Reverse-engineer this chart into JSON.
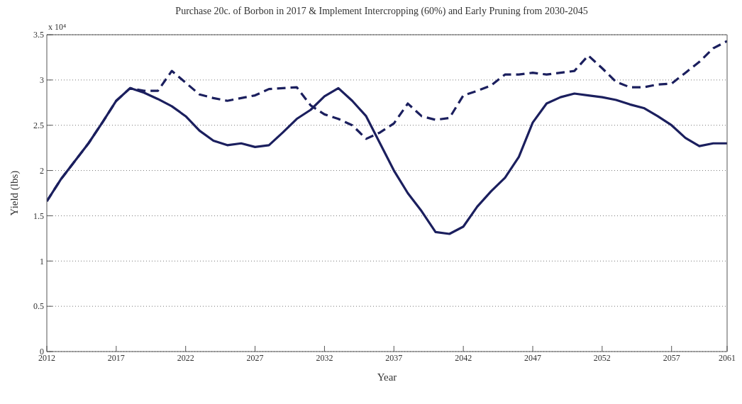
{
  "chart_data": {
    "type": "line",
    "title": "Purchase 20c. of Borbon in 2017 & Implement Intercropping (60%) and Early Pruning from 2030-2045",
    "xlabel": "Year",
    "ylabel": "Yield (lbs)",
    "annotations": [
      "x 10⁴"
    ],
    "x": [
      2012,
      2013,
      2014,
      2015,
      2016,
      2017,
      2018,
      2019,
      2020,
      2021,
      2022,
      2023,
      2024,
      2025,
      2026,
      2027,
      2028,
      2029,
      2030,
      2031,
      2032,
      2033,
      2034,
      2035,
      2036,
      2037,
      2038,
      2039,
      2040,
      2041,
      2042,
      2043,
      2044,
      2045,
      2046,
      2047,
      2048,
      2049,
      2050,
      2051,
      2052,
      2053,
      2054,
      2055,
      2056,
      2057,
      2058,
      2059,
      2060,
      2061
    ],
    "series": [
      {
        "color": "#1b1f5e",
        "line_style": "solid",
        "values": [
          1.66,
          1.9,
          2.1,
          2.3,
          2.53,
          2.77,
          2.91,
          2.86,
          2.79,
          2.71,
          2.6,
          2.44,
          2.33,
          2.28,
          2.3,
          2.26,
          2.28,
          2.42,
          2.57,
          2.67,
          2.82,
          2.91,
          2.77,
          2.6,
          2.3,
          2.0,
          1.75,
          1.55,
          1.32,
          1.3,
          1.38,
          1.6,
          1.77,
          1.92,
          2.15,
          2.53,
          2.74,
          2.81,
          2.85,
          2.83,
          2.81,
          2.78,
          2.73,
          2.69,
          2.6,
          2.5,
          2.36,
          2.27,
          2.3,
          2.3
        ]
      },
      {
        "color": "#1b1f5e",
        "line_style": "dashed",
        "values": [
          1.66,
          1.9,
          2.1,
          2.3,
          2.53,
          2.77,
          2.91,
          2.88,
          2.88,
          3.1,
          2.97,
          2.84,
          2.8,
          2.77,
          2.8,
          2.83,
          2.9,
          2.91,
          2.92,
          2.72,
          2.62,
          2.57,
          2.5,
          2.35,
          2.42,
          2.52,
          2.74,
          2.6,
          2.56,
          2.58,
          2.83,
          2.88,
          2.94,
          3.06,
          3.06,
          3.08,
          3.06,
          3.08,
          3.1,
          3.27,
          3.13,
          2.98,
          2.92,
          2.92,
          2.95,
          2.96,
          3.08,
          3.2,
          3.35,
          3.43
        ]
      }
    ],
    "xlim": [
      2012,
      2061
    ],
    "xticks": [
      2012,
      2017,
      2022,
      2027,
      2032,
      2037,
      2042,
      2047,
      2052,
      2057,
      2061
    ],
    "ylim": [
      0,
      3.5
    ],
    "yticks": [
      0,
      0.5,
      1,
      1.5,
      2,
      2.5,
      3,
      3.5
    ],
    "grid": "y",
    "legend": false,
    "marker": "none"
  }
}
